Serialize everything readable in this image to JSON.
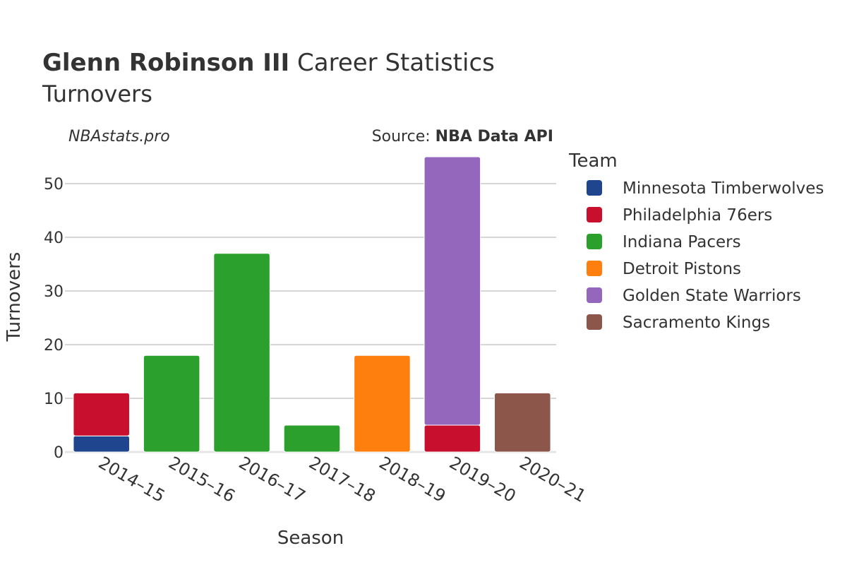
{
  "chart_data": {
    "type": "bar",
    "stacked": true,
    "title_bold": "Glenn Robinson III",
    "title_rest": " Career Statistics",
    "subtitle": "Turnovers",
    "watermark": "NBAstats.pro",
    "source_prefix": "Source: ",
    "source_name": "NBA Data API",
    "xlabel": "Season",
    "ylabel": "Turnovers",
    "ylim": [
      0,
      55
    ],
    "yticks": [
      0,
      10,
      20,
      30,
      40,
      50
    ],
    "categories": [
      "2014–15",
      "2015–16",
      "2016–17",
      "2017–18",
      "2018–19",
      "2019–20",
      "2020–21"
    ],
    "legend_title": "Team",
    "series": [
      {
        "name": "Minnesota Timberwolves",
        "color": "#1f458e",
        "values": [
          3,
          0,
          0,
          0,
          0,
          0,
          0
        ]
      },
      {
        "name": "Philadelphia 76ers",
        "color": "#c8102e",
        "values": [
          8,
          0,
          0,
          0,
          0,
          5,
          0
        ]
      },
      {
        "name": "Indiana Pacers",
        "color": "#2ca02c",
        "values": [
          0,
          18,
          37,
          5,
          0,
          0,
          0
        ]
      },
      {
        "name": "Detroit Pistons",
        "color": "#ff7f0e",
        "values": [
          0,
          0,
          0,
          0,
          18,
          0,
          0
        ]
      },
      {
        "name": "Golden State Warriors",
        "color": "#9467bd",
        "values": [
          0,
          0,
          0,
          0,
          0,
          50,
          0
        ]
      },
      {
        "name": "Sacramento Kings",
        "color": "#8c564b",
        "values": [
          0,
          0,
          0,
          0,
          0,
          0,
          11
        ]
      }
    ]
  }
}
